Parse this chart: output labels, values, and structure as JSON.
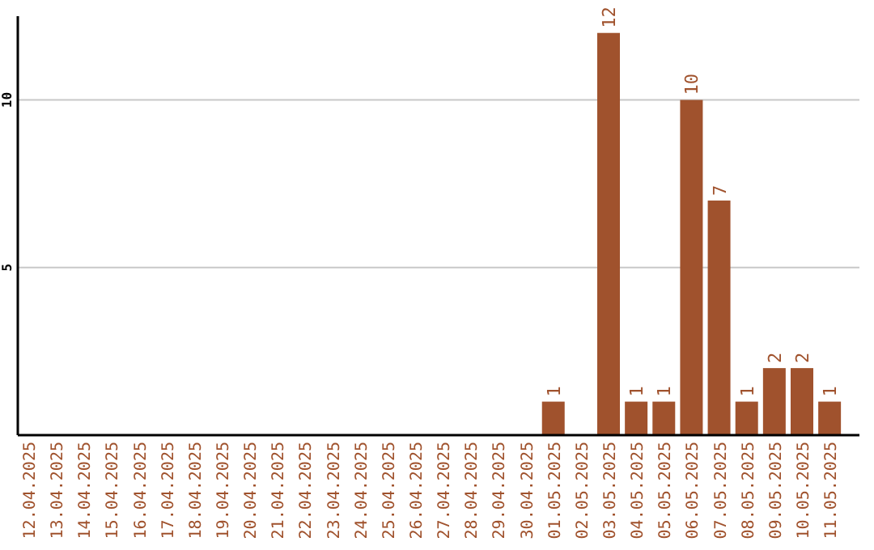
{
  "chart_data": {
    "type": "bar",
    "categories": [
      "12.04.2025",
      "13.04.2025",
      "14.04.2025",
      "15.04.2025",
      "16.04.2025",
      "17.04.2025",
      "18.04.2025",
      "19.04.2025",
      "20.04.2025",
      "21.04.2025",
      "22.04.2025",
      "23.04.2025",
      "24.04.2025",
      "25.04.2025",
      "26.04.2025",
      "27.04.2025",
      "28.04.2025",
      "29.04.2025",
      "30.04.2025",
      "01.05.2025",
      "02.05.2025",
      "03.05.2025",
      "04.05.2025",
      "05.05.2025",
      "06.05.2025",
      "07.05.2025",
      "08.05.2025",
      "09.05.2025",
      "10.05.2025",
      "11.05.2025"
    ],
    "values": [
      0,
      0,
      0,
      0,
      0,
      0,
      0,
      0,
      0,
      0,
      0,
      0,
      0,
      0,
      0,
      0,
      0,
      0,
      0,
      1,
      0,
      12,
      1,
      1,
      10,
      7,
      1,
      2,
      2,
      1
    ],
    "value_labels": [
      null,
      null,
      null,
      null,
      null,
      null,
      null,
      null,
      null,
      null,
      null,
      null,
      null,
      null,
      null,
      null,
      null,
      null,
      null,
      "1",
      null,
      "12",
      "1",
      "1",
      "10",
      "7",
      "1",
      "2",
      "2",
      "1"
    ],
    "color": "#a0522d",
    "ylim": [
      0,
      12.5
    ],
    "yticks": [
      5,
      10
    ],
    "grid": "y"
  }
}
